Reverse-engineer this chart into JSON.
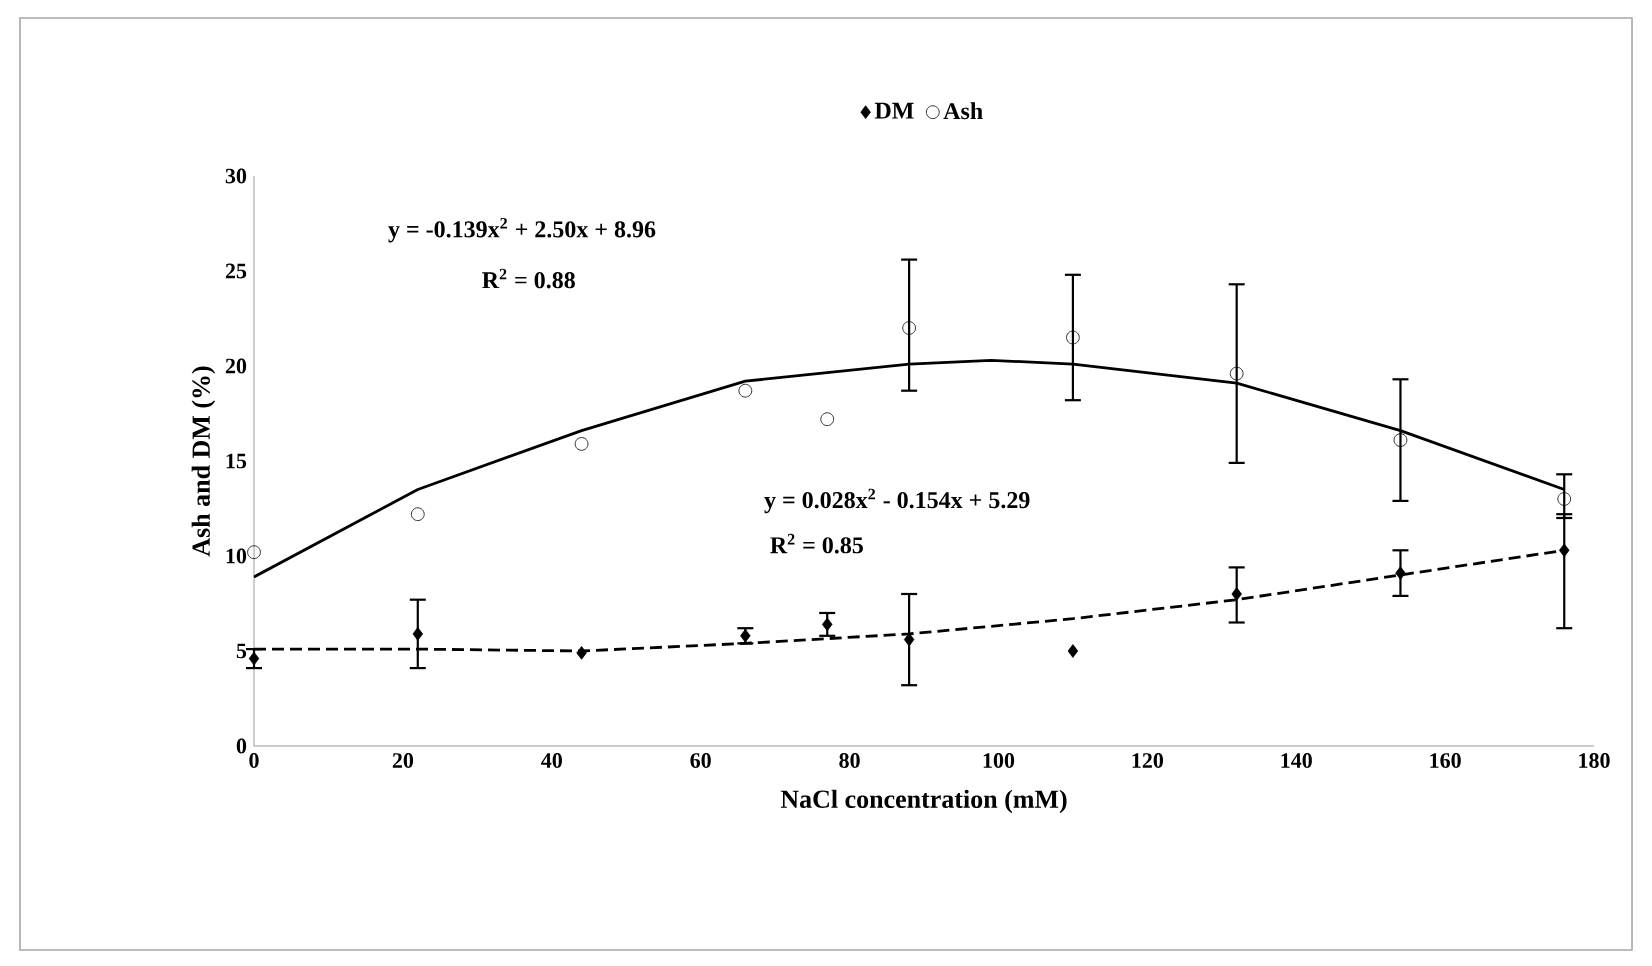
{
  "chart_data": {
    "type": "scatter",
    "xlabel": "NaCl concentration (mM)",
    "ylabel": "Ash and DM (%)",
    "xlim": [
      0,
      180
    ],
    "xticks": [
      0,
      20,
      40,
      60,
      80,
      100,
      120,
      140,
      160,
      180
    ],
    "ylim": [
      0,
      30
    ],
    "yticks": [
      0,
      5,
      10,
      15,
      20,
      25,
      30
    ],
    "grid": false,
    "legend": "top",
    "annotations": [
      "y = -0.139x$^{2}$ + 2.50x + 8.96",
      "R$^{2}$ = 0.88",
      "y = 0.028x$^{2}$ - 0.154x + 5.29",
      "R$^{2}$ = 0.85"
    ],
    "series": [
      {
        "name": "DM",
        "color": "#000000",
        "marker": "diamond",
        "x": [
          0,
          22,
          44,
          66,
          77,
          88,
          110,
          132,
          154,
          176
        ],
        "values": [
          4.6,
          5.9,
          4.9,
          5.8,
          6.4,
          5.6,
          5.0,
          8.0,
          9.1,
          10.3
        ],
        "errors": [
          [
            4.1,
            5.1
          ],
          [
            4.1,
            7.7
          ],
          null,
          [
            5.4,
            6.2
          ],
          [
            5.8,
            7.0
          ],
          [
            3.2,
            8.0
          ],
          null,
          [
            6.5,
            9.4
          ],
          [
            7.9,
            10.3
          ],
          [
            6.2,
            12.2
          ]
        ]
      },
      {
        "name": "Ash",
        "color": "#000000",
        "marker": "circle",
        "x": [
          0,
          22,
          44,
          66,
          77,
          88,
          110,
          132,
          154,
          176
        ],
        "values": [
          10.2,
          12.2,
          15.9,
          18.7,
          17.2,
          22.0,
          21.5,
          19.6,
          16.1,
          13.0
        ],
        "errors": [
          null,
          null,
          null,
          null,
          null,
          [
            18.7,
            25.6
          ],
          [
            18.2,
            24.8
          ],
          [
            14.9,
            24.3
          ],
          [
            12.9,
            19.3
          ],
          [
            12.0,
            14.3
          ]
        ]
      },
      {
        "type": "line",
        "color": "#000000",
        "marker": "none",
        "line_style": "dashed",
        "x": [
          0,
          22,
          44,
          66,
          88,
          110,
          132,
          154,
          176
        ],
        "values": [
          5.1,
          5.1,
          5.0,
          5.4,
          5.9,
          6.7,
          7.7,
          9.0,
          10.3
        ]
      },
      {
        "type": "line",
        "color": "#000000",
        "marker": "none",
        "line_style": "solid",
        "x": [
          0,
          22,
          44,
          66,
          88,
          99,
          110,
          132,
          154,
          176
        ],
        "values": [
          8.9,
          13.5,
          16.6,
          19.2,
          20.1,
          20.3,
          20.1,
          19.1,
          16.6,
          13.5
        ]
      }
    ]
  }
}
